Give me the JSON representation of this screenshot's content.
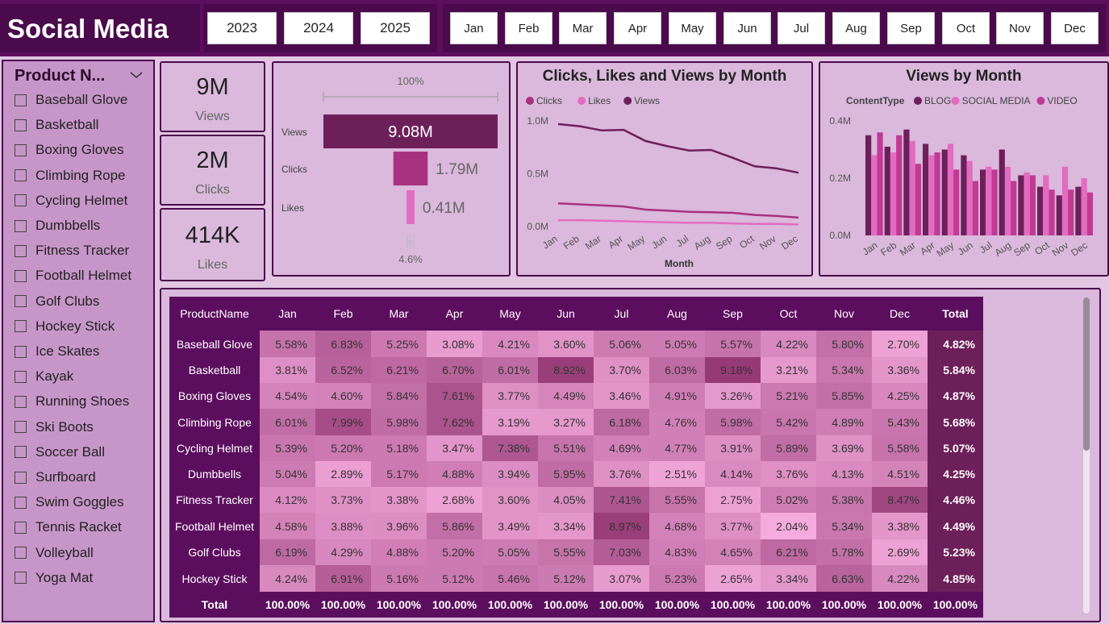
{
  "header": {
    "title": "Social Media",
    "years": [
      "2023",
      "2024",
      "2025"
    ],
    "months": [
      "Jan",
      "Feb",
      "Mar",
      "Apr",
      "May",
      "Jun",
      "Jul",
      "Aug",
      "Sep",
      "Oct",
      "Nov",
      "Dec"
    ]
  },
  "slicer": {
    "title": "Product N...",
    "items": [
      "Baseball Glove",
      "Basketball",
      "Boxing Gloves",
      "Climbing Rope",
      "Cycling Helmet",
      "Dumbbells",
      "Fitness Tracker",
      "Football Helmet",
      "Golf Clubs",
      "Hockey Stick",
      "Ice Skates",
      "Kayak",
      "Running Shoes",
      "Ski Boots",
      "Soccer Ball",
      "Surfboard",
      "Swim Goggles",
      "Tennis Racket",
      "Volleyball",
      "Yoga Mat"
    ]
  },
  "kpis": [
    {
      "value": "9M",
      "label": "Views"
    },
    {
      "value": "2M",
      "label": "Clicks"
    },
    {
      "value": "414K",
      "label": "Likes"
    }
  ],
  "funnel": {
    "top_label": "100%",
    "bottom_label": "4.6%",
    "stages": [
      {
        "name": "Views",
        "value": 9.08,
        "label": "9.08M",
        "color": "#6d1f5a"
      },
      {
        "name": "Clicks",
        "value": 1.79,
        "label": "1.79M",
        "color": "#a8327f"
      },
      {
        "name": "Likes",
        "value": 0.41,
        "label": "0.41M",
        "color": "#e26cbf"
      }
    ]
  },
  "colors": {
    "views": "#6d1f5a",
    "clicks": "#a8327f",
    "likes": "#e26cbf",
    "header_bg": "#5c0e5e",
    "panel_bg": "#dab9dc",
    "matrix_total": "#6d1f5a"
  },
  "chart_data": [
    {
      "type": "line",
      "title": "Clicks, Likes and Views by Month",
      "xlabel": "Month",
      "ylabel": "",
      "categories": [
        "Jan",
        "Feb",
        "Mar",
        "Apr",
        "May",
        "Jun",
        "Jul",
        "Aug",
        "Sep",
        "Oct",
        "Nov",
        "Dec"
      ],
      "ylim": [
        0,
        1.0
      ],
      "y_ticks": [
        "0.0M",
        "0.5M",
        "1.0M"
      ],
      "legend_position": "top-left",
      "series": [
        {
          "name": "Clicks",
          "color": "#a8327f",
          "values": [
            0.22,
            0.21,
            0.2,
            0.19,
            0.16,
            0.15,
            0.14,
            0.135,
            0.13,
            0.11,
            0.1,
            0.085
          ]
        },
        {
          "name": "Likes",
          "color": "#e26cbf",
          "values": [
            0.06,
            0.06,
            0.055,
            0.05,
            0.045,
            0.04,
            0.035,
            0.035,
            0.03,
            0.025,
            0.025,
            0.02
          ]
        },
        {
          "name": "Views",
          "color": "#6d1f5a",
          "values": [
            0.97,
            0.95,
            0.91,
            0.915,
            0.81,
            0.76,
            0.72,
            0.725,
            0.65,
            0.57,
            0.55,
            0.51
          ]
        }
      ]
    },
    {
      "type": "bar",
      "title": "Views by Month",
      "legend_title": "ContentType",
      "legend_position": "top",
      "categories": [
        "Jan",
        "Feb",
        "Mar",
        "Apr",
        "May",
        "Jun",
        "Jul",
        "Aug",
        "Sep",
        "Oct",
        "Nov",
        "Dec"
      ],
      "ylim": [
        0,
        0.4
      ],
      "y_ticks": [
        "0.0M",
        "0.2M",
        "0.4M"
      ],
      "series": [
        {
          "name": "BLOG",
          "color": "#6d1f5a",
          "values": [
            0.35,
            0.31,
            0.37,
            0.32,
            0.3,
            0.28,
            0.23,
            0.3,
            0.21,
            0.17,
            0.14,
            0.17
          ]
        },
        {
          "name": "SOCIAL MEDIA",
          "color": "#e26cbf",
          "values": [
            0.28,
            0.29,
            0.33,
            0.28,
            0.32,
            0.26,
            0.24,
            0.24,
            0.22,
            0.21,
            0.24,
            0.2
          ]
        },
        {
          "name": "VIDEO",
          "color": "#c13a94",
          "values": [
            0.36,
            0.35,
            0.25,
            0.29,
            0.23,
            0.19,
            0.23,
            0.19,
            0.21,
            0.16,
            0.16,
            0.15
          ]
        }
      ]
    },
    {
      "type": "table",
      "columns": [
        "ProductName",
        "Jan",
        "Feb",
        "Mar",
        "Apr",
        "May",
        "Jun",
        "Jul",
        "Aug",
        "Sep",
        "Oct",
        "Nov",
        "Dec",
        "Total"
      ],
      "rows": [
        {
          "name": "Baseball Glove",
          "values": [
            "5.58%",
            "6.83%",
            "5.25%",
            "3.08%",
            "4.21%",
            "3.60%",
            "5.06%",
            "5.05%",
            "5.57%",
            "4.22%",
            "5.80%",
            "2.70%",
            "4.82%"
          ]
        },
        {
          "name": "Basketball",
          "values": [
            "3.81%",
            "6.52%",
            "6.21%",
            "6.70%",
            "6.01%",
            "8.92%",
            "3.70%",
            "6.03%",
            "9.18%",
            "3.21%",
            "5.34%",
            "3.36%",
            "5.84%"
          ]
        },
        {
          "name": "Boxing Gloves",
          "values": [
            "4.54%",
            "4.60%",
            "5.84%",
            "7.61%",
            "3.77%",
            "4.49%",
            "3.46%",
            "4.91%",
            "3.26%",
            "5.21%",
            "5.85%",
            "4.25%",
            "4.87%"
          ]
        },
        {
          "name": "Climbing Rope",
          "values": [
            "6.01%",
            "7.99%",
            "5.98%",
            "7.62%",
            "3.19%",
            "3.27%",
            "6.18%",
            "4.76%",
            "5.98%",
            "5.42%",
            "4.89%",
            "5.43%",
            "5.68%"
          ]
        },
        {
          "name": "Cycling Helmet",
          "values": [
            "5.39%",
            "5.20%",
            "5.18%",
            "3.47%",
            "7.38%",
            "5.51%",
            "4.69%",
            "4.77%",
            "3.91%",
            "5.89%",
            "3.69%",
            "5.58%",
            "5.07%"
          ]
        },
        {
          "name": "Dumbbells",
          "values": [
            "5.04%",
            "2.89%",
            "5.17%",
            "4.88%",
            "3.94%",
            "5.95%",
            "3.76%",
            "2.51%",
            "4.14%",
            "3.76%",
            "4.13%",
            "4.51%",
            "4.25%"
          ]
        },
        {
          "name": "Fitness Tracker",
          "values": [
            "4.12%",
            "3.73%",
            "3.38%",
            "2.68%",
            "3.60%",
            "4.05%",
            "7.41%",
            "5.55%",
            "2.75%",
            "5.02%",
            "5.38%",
            "8.47%",
            "4.46%"
          ]
        },
        {
          "name": "Football Helmet",
          "values": [
            "4.58%",
            "3.88%",
            "3.96%",
            "5.86%",
            "3.49%",
            "3.34%",
            "8.97%",
            "4.68%",
            "3.77%",
            "2.04%",
            "5.34%",
            "3.38%",
            "4.49%"
          ]
        },
        {
          "name": "Golf Clubs",
          "values": [
            "6.19%",
            "4.29%",
            "4.88%",
            "5.20%",
            "5.05%",
            "5.55%",
            "7.03%",
            "4.83%",
            "4.65%",
            "6.21%",
            "5.78%",
            "2.69%",
            "5.23%"
          ]
        },
        {
          "name": "Hockey Stick",
          "values": [
            "4.24%",
            "6.91%",
            "5.16%",
            "5.12%",
            "5.46%",
            "5.12%",
            "3.07%",
            "5.23%",
            "2.65%",
            "3.34%",
            "6.63%",
            "4.22%",
            "4.85%"
          ]
        }
      ],
      "total_row": {
        "name": "Total",
        "values": [
          "100.00%",
          "100.00%",
          "100.00%",
          "100.00%",
          "100.00%",
          "100.00%",
          "100.00%",
          "100.00%",
          "100.00%",
          "100.00%",
          "100.00%",
          "100.00%",
          "100.00%"
        ]
      }
    }
  ]
}
